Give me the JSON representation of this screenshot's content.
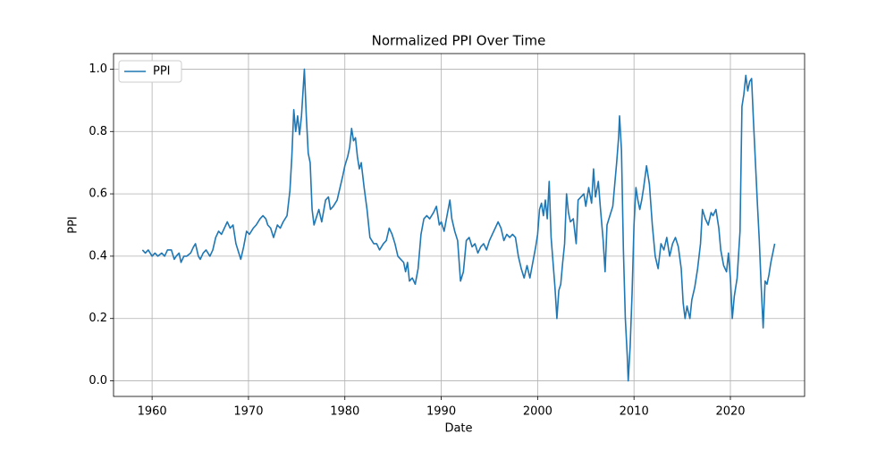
{
  "chart_data": {
    "type": "line",
    "title": "Normalized PPI Over Time",
    "x_label": "Date",
    "y_label": "PPI",
    "x": [
      1959.0,
      1959.3,
      1959.6,
      1960.0,
      1960.3,
      1960.6,
      1961.0,
      1961.3,
      1961.6,
      1962.0,
      1962.3,
      1962.5,
      1962.8,
      1963.0,
      1963.3,
      1963.6,
      1964.0,
      1964.3,
      1964.5,
      1964.8,
      1965.0,
      1965.3,
      1965.6,
      1966.0,
      1966.3,
      1966.6,
      1966.9,
      1967.2,
      1967.5,
      1967.8,
      1968.1,
      1968.4,
      1968.7,
      1969.0,
      1969.2,
      1969.5,
      1969.8,
      1970.1,
      1970.5,
      1970.8,
      1971.2,
      1971.5,
      1971.8,
      1972.0,
      1972.3,
      1972.6,
      1973.0,
      1973.3,
      1973.6,
      1974.0,
      1974.3,
      1974.5,
      1974.7,
      1974.9,
      1975.1,
      1975.3,
      1975.5,
      1975.7,
      1975.8,
      1976.0,
      1976.2,
      1976.4,
      1976.6,
      1976.8,
      1977.0,
      1977.3,
      1977.6,
      1978.0,
      1978.3,
      1978.5,
      1978.8,
      1979.2,
      1979.5,
      1979.8,
      1980.0,
      1980.3,
      1980.5,
      1980.7,
      1980.9,
      1981.1,
      1981.3,
      1981.5,
      1981.7,
      1982.0,
      1982.3,
      1982.6,
      1983.0,
      1983.3,
      1983.6,
      1984.0,
      1984.3,
      1984.6,
      1984.9,
      1985.2,
      1985.5,
      1985.8,
      1986.1,
      1986.3,
      1986.5,
      1986.7,
      1987.0,
      1987.3,
      1987.6,
      1987.9,
      1988.2,
      1988.5,
      1988.8,
      1989.2,
      1989.5,
      1989.8,
      1990.0,
      1990.3,
      1990.6,
      1990.9,
      1991.1,
      1991.4,
      1991.7,
      1992.0,
      1992.3,
      1992.6,
      1992.9,
      1993.2,
      1993.5,
      1993.8,
      1994.1,
      1994.4,
      1994.7,
      1995.0,
      1995.3,
      1995.6,
      1995.9,
      1996.2,
      1996.5,
      1996.8,
      1997.1,
      1997.4,
      1997.7,
      1998.0,
      1998.3,
      1998.6,
      1998.9,
      1999.2,
      1999.5,
      1999.8,
      2000.0,
      2000.2,
      2000.4,
      2000.6,
      2000.8,
      2001.0,
      2001.2,
      2001.4,
      2001.6,
      2001.8,
      2002.0,
      2002.2,
      2002.4,
      2002.6,
      2002.8,
      2003.0,
      2003.2,
      2003.4,
      2003.7,
      2004.0,
      2004.2,
      2004.5,
      2004.8,
      2005.0,
      2005.3,
      2005.6,
      2005.8,
      2006.0,
      2006.3,
      2006.5,
      2006.8,
      2007.0,
      2007.2,
      2007.5,
      2007.8,
      2008.0,
      2008.2,
      2008.4,
      2008.5,
      2008.7,
      2008.9,
      2009.1,
      2009.3,
      2009.4,
      2009.6,
      2009.8,
      2010.0,
      2010.2,
      2010.4,
      2010.6,
      2010.8,
      2011.0,
      2011.3,
      2011.6,
      2011.9,
      2012.2,
      2012.5,
      2012.8,
      2013.1,
      2013.4,
      2013.7,
      2014.0,
      2014.3,
      2014.6,
      2014.9,
      2015.1,
      2015.3,
      2015.5,
      2015.8,
      2016.0,
      2016.3,
      2016.6,
      2016.9,
      2017.1,
      2017.4,
      2017.7,
      2018.0,
      2018.2,
      2018.5,
      2018.8,
      2019.0,
      2019.3,
      2019.6,
      2019.8,
      2020.0,
      2020.2,
      2020.4,
      2020.7,
      2021.0,
      2021.2,
      2021.4,
      2021.6,
      2021.8,
      2022.0,
      2022.2,
      2022.4,
      2022.6,
      2022.8,
      2023.0,
      2023.2,
      2023.4,
      2023.6,
      2023.8,
      2024.0,
      2024.2,
      2024.6
    ],
    "series": [
      {
        "name": "PPI",
        "color": "#1f77b4",
        "values": [
          0.42,
          0.41,
          0.42,
          0.4,
          0.41,
          0.4,
          0.41,
          0.4,
          0.42,
          0.42,
          0.39,
          0.4,
          0.41,
          0.38,
          0.4,
          0.4,
          0.41,
          0.43,
          0.44,
          0.4,
          0.39,
          0.41,
          0.42,
          0.4,
          0.42,
          0.46,
          0.48,
          0.47,
          0.49,
          0.51,
          0.49,
          0.5,
          0.44,
          0.41,
          0.39,
          0.43,
          0.48,
          0.47,
          0.49,
          0.5,
          0.52,
          0.53,
          0.52,
          0.5,
          0.49,
          0.46,
          0.5,
          0.49,
          0.51,
          0.53,
          0.61,
          0.72,
          0.87,
          0.8,
          0.85,
          0.79,
          0.85,
          0.95,
          1.0,
          0.85,
          0.73,
          0.7,
          0.55,
          0.5,
          0.52,
          0.55,
          0.51,
          0.58,
          0.59,
          0.55,
          0.56,
          0.58,
          0.62,
          0.66,
          0.69,
          0.72,
          0.75,
          0.81,
          0.77,
          0.78,
          0.72,
          0.68,
          0.7,
          0.62,
          0.55,
          0.46,
          0.44,
          0.44,
          0.42,
          0.44,
          0.45,
          0.49,
          0.47,
          0.44,
          0.4,
          0.39,
          0.38,
          0.35,
          0.38,
          0.32,
          0.33,
          0.31,
          0.36,
          0.47,
          0.52,
          0.53,
          0.52,
          0.54,
          0.56,
          0.5,
          0.51,
          0.48,
          0.53,
          0.58,
          0.52,
          0.48,
          0.45,
          0.32,
          0.35,
          0.45,
          0.46,
          0.43,
          0.44,
          0.41,
          0.43,
          0.44,
          0.42,
          0.45,
          0.47,
          0.49,
          0.51,
          0.49,
          0.45,
          0.47,
          0.46,
          0.47,
          0.46,
          0.4,
          0.36,
          0.33,
          0.37,
          0.33,
          0.38,
          0.43,
          0.47,
          0.55,
          0.57,
          0.53,
          0.58,
          0.52,
          0.64,
          0.46,
          0.38,
          0.3,
          0.2,
          0.29,
          0.31,
          0.38,
          0.44,
          0.6,
          0.54,
          0.51,
          0.52,
          0.44,
          0.58,
          0.59,
          0.6,
          0.56,
          0.62,
          0.57,
          0.68,
          0.59,
          0.64,
          0.56,
          0.45,
          0.35,
          0.5,
          0.53,
          0.56,
          0.63,
          0.7,
          0.78,
          0.85,
          0.74,
          0.42,
          0.2,
          0.08,
          0.0,
          0.11,
          0.28,
          0.5,
          0.62,
          0.58,
          0.55,
          0.58,
          0.62,
          0.69,
          0.63,
          0.5,
          0.4,
          0.36,
          0.44,
          0.42,
          0.46,
          0.4,
          0.44,
          0.46,
          0.43,
          0.36,
          0.25,
          0.2,
          0.24,
          0.2,
          0.26,
          0.3,
          0.36,
          0.44,
          0.55,
          0.52,
          0.5,
          0.54,
          0.53,
          0.55,
          0.49,
          0.42,
          0.37,
          0.35,
          0.41,
          0.33,
          0.2,
          0.27,
          0.33,
          0.48,
          0.88,
          0.92,
          0.98,
          0.93,
          0.96,
          0.97,
          0.83,
          0.7,
          0.57,
          0.45,
          0.3,
          0.17,
          0.32,
          0.31,
          0.34,
          0.38,
          0.44
        ]
      }
    ],
    "xlim": [
      1956.0,
      2027.7
    ],
    "ylim": [
      -0.05,
      1.05
    ],
    "xticks": [
      1960,
      1970,
      1980,
      1990,
      2000,
      2010,
      2020
    ],
    "yticks": [
      {
        "value": 0,
        "label": "0.0"
      },
      0.2,
      0.4,
      0.6,
      0.8,
      {
        "value": 1,
        "label": "1.0"
      }
    ],
    "grid": true,
    "legend": "upper left"
  }
}
